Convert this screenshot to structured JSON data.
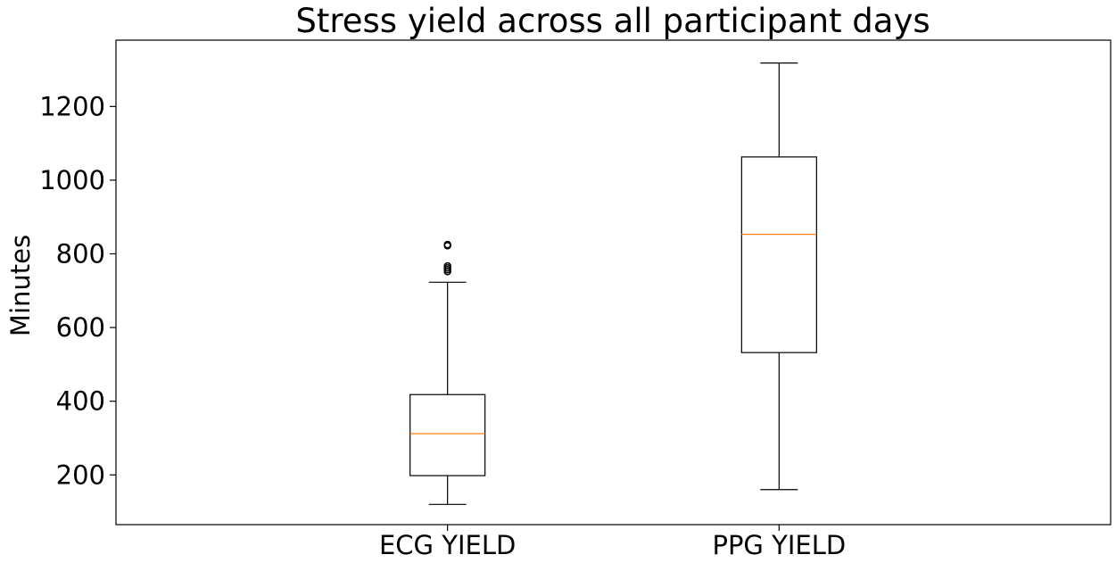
{
  "chart_data": {
    "type": "boxplot",
    "title": "Stress yield across all participant days",
    "xlabel": "",
    "ylabel": "Minutes",
    "ylim": [
      65,
      1380
    ],
    "yticks": [
      200,
      400,
      600,
      800,
      1000,
      1200
    ],
    "categories": [
      "ECG YIELD",
      "PPG YIELD"
    ],
    "series": [
      {
        "name": "ECG YIELD",
        "whisker_low": 120,
        "q1": 198,
        "median": 312,
        "q3": 418,
        "whisker_high": 723,
        "outliers": [
          752,
          757,
          762,
          767,
          822,
          825
        ]
      },
      {
        "name": "PPG YIELD",
        "whisker_low": 160,
        "q1": 532,
        "median": 853,
        "q3": 1063,
        "whisker_high": 1318,
        "outliers": []
      }
    ],
    "grid": false,
    "colors": {
      "box": "#000000",
      "median": "#ff7f0e",
      "outlier": "#000000"
    }
  }
}
